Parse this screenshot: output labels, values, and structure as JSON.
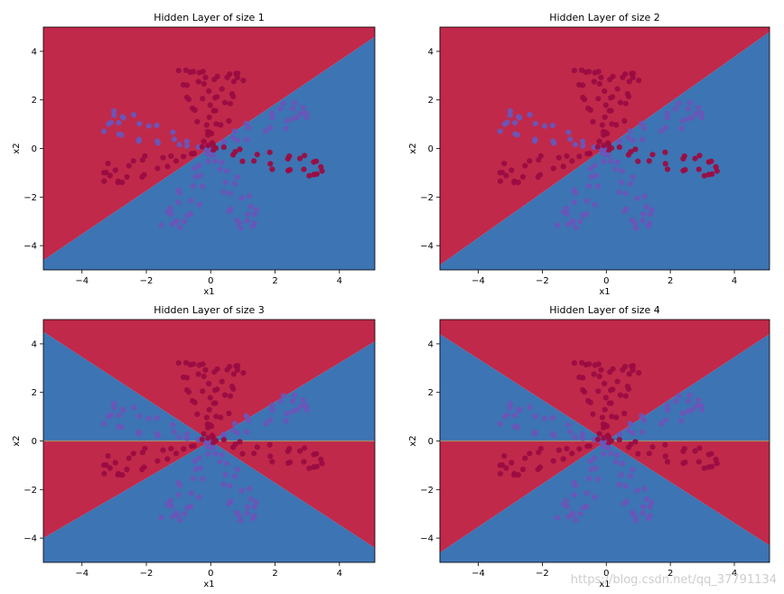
{
  "watermark": "https://blog.csdn.net/qq_37791134",
  "colors": {
    "red_region": "#c0294a",
    "blue_region": "#3d74b3",
    "red_point": "#9b0c42",
    "blue_point": "#6a55b8",
    "boundary_line": "#a38a6e"
  },
  "chart_data": [
    {
      "type": "scatter",
      "title": "Hidden Layer of size 1",
      "xlabel": "x1",
      "ylabel": "x2",
      "xlim": [
        -5.2,
        5.1
      ],
      "ylim": [
        -5.0,
        5.0
      ],
      "xticks": [
        -4,
        -2,
        0,
        2,
        4
      ],
      "yticks": [
        4,
        2,
        0,
        -2,
        -4
      ],
      "xtick_labels": [
        "−4",
        "−2",
        "0",
        "2",
        "4"
      ],
      "ytick_labels": [
        "4",
        "2",
        "0",
        "−2",
        "−4"
      ],
      "regions": [
        {
          "class": "red",
          "polygon": [
            [
              -5.2,
              5.0
            ],
            [
              5.1,
              5.0
            ],
            [
              5.1,
              4.6
            ],
            [
              -5.2,
              -4.6
            ]
          ]
        },
        {
          "class": "blue",
          "polygon": [
            [
              -5.2,
              -4.6
            ],
            [
              5.1,
              4.6
            ],
            [
              5.1,
              -5.0
            ],
            [
              -5.2,
              -5.0
            ]
          ]
        }
      ],
      "boundary_lines": []
    },
    {
      "type": "scatter",
      "title": "Hidden Layer of size 2",
      "xlabel": "x1",
      "ylabel": "x2",
      "xlim": [
        -5.2,
        5.1
      ],
      "ylim": [
        -5.0,
        5.0
      ],
      "xticks": [
        -4,
        -2,
        0,
        2,
        4
      ],
      "yticks": [
        4,
        2,
        0,
        -2,
        -4
      ],
      "xtick_labels": [
        "−4",
        "−2",
        "0",
        "2",
        "4"
      ],
      "ytick_labels": [
        "4",
        "2",
        "0",
        "−2",
        "−4"
      ],
      "regions": [
        {
          "class": "red",
          "polygon": [
            [
              -5.2,
              5.0
            ],
            [
              5.1,
              5.0
            ],
            [
              5.1,
              4.8
            ],
            [
              -5.2,
              -4.8
            ]
          ]
        },
        {
          "class": "blue",
          "polygon": [
            [
              -5.2,
              -4.8
            ],
            [
              5.1,
              4.8
            ],
            [
              5.1,
              -5.0
            ],
            [
              -5.2,
              -5.0
            ]
          ]
        }
      ],
      "boundary_lines": []
    },
    {
      "type": "scatter",
      "title": "Hidden Layer of size 3",
      "xlabel": "x1",
      "ylabel": "x2",
      "xlim": [
        -5.2,
        5.1
      ],
      "ylim": [
        -5.0,
        5.0
      ],
      "xticks": [
        -4,
        -2,
        0,
        2,
        4
      ],
      "yticks": [
        4,
        2,
        0,
        -2,
        -4
      ],
      "xtick_labels": [
        "−4",
        "−2",
        "0",
        "2",
        "4"
      ],
      "ytick_labels": [
        "4",
        "2",
        "0",
        "−2",
        "−4"
      ],
      "regions": [
        {
          "class": "red",
          "polygon": [
            [
              -5.2,
              5.0
            ],
            [
              5.1,
              5.0
            ],
            [
              5.1,
              4.1
            ],
            [
              0,
              0
            ],
            [
              -5.2,
              4.5
            ]
          ]
        },
        {
          "class": "blue",
          "polygon": [
            [
              -5.2,
              4.5
            ],
            [
              0,
              0
            ],
            [
              -5.2,
              0
            ]
          ]
        },
        {
          "class": "blue",
          "polygon": [
            [
              0,
              0
            ],
            [
              5.1,
              4.1
            ],
            [
              5.1,
              0
            ]
          ]
        },
        {
          "class": "red",
          "polygon": [
            [
              -5.2,
              0
            ],
            [
              0,
              0
            ],
            [
              -5.2,
              -4.0
            ]
          ]
        },
        {
          "class": "red",
          "polygon": [
            [
              0,
              0
            ],
            [
              5.1,
              0
            ],
            [
              5.1,
              -4.4
            ]
          ]
        },
        {
          "class": "blue",
          "polygon": [
            [
              -5.2,
              -4.0
            ],
            [
              0,
              0
            ],
            [
              5.1,
              -4.4
            ],
            [
              5.1,
              -5.0
            ],
            [
              -5.2,
              -5.0
            ]
          ]
        }
      ],
      "boundary_lines": [
        [
          [
            -5.2,
            0
          ],
          [
            5.1,
            0
          ]
        ]
      ]
    },
    {
      "type": "scatter",
      "title": "Hidden Layer of size 4",
      "xlabel": "x1",
      "ylabel": "x2",
      "xlim": [
        -5.2,
        5.1
      ],
      "ylim": [
        -5.0,
        5.0
      ],
      "xticks": [
        -4,
        -2,
        0,
        2,
        4
      ],
      "yticks": [
        4,
        2,
        0,
        -2,
        -4
      ],
      "xtick_labels": [
        "−4",
        "−2",
        "0",
        "2",
        "4"
      ],
      "ytick_labels": [
        "4",
        "2",
        "0",
        "−2",
        "−4"
      ],
      "regions": [
        {
          "class": "red",
          "polygon": [
            [
              -5.2,
              5.0
            ],
            [
              5.1,
              5.0
            ],
            [
              5.1,
              4.4
            ],
            [
              0,
              0
            ],
            [
              -5.2,
              4.4
            ]
          ]
        },
        {
          "class": "blue",
          "polygon": [
            [
              -5.2,
              4.4
            ],
            [
              0,
              0
            ],
            [
              -5.2,
              0
            ]
          ]
        },
        {
          "class": "blue",
          "polygon": [
            [
              0,
              0
            ],
            [
              5.1,
              4.4
            ],
            [
              5.1,
              0
            ]
          ]
        },
        {
          "class": "red",
          "polygon": [
            [
              -5.2,
              0
            ],
            [
              0,
              0
            ],
            [
              -5.2,
              -4.6
            ]
          ]
        },
        {
          "class": "red",
          "polygon": [
            [
              0,
              0
            ],
            [
              5.1,
              0
            ],
            [
              5.1,
              -4.3
            ]
          ]
        },
        {
          "class": "blue",
          "polygon": [
            [
              -5.2,
              -4.6
            ],
            [
              0,
              0
            ],
            [
              5.1,
              -4.3
            ],
            [
              5.1,
              -5.0
            ],
            [
              -5.2,
              -5.0
            ]
          ]
        }
      ],
      "boundary_lines": [
        [
          [
            -5.2,
            0
          ],
          [
            5.1,
            0
          ]
        ]
      ]
    }
  ]
}
